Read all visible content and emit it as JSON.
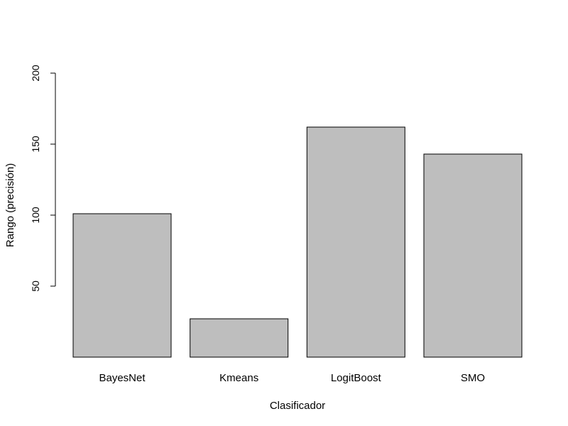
{
  "chart_data": {
    "type": "bar",
    "title": "",
    "xlabel": "Clasificador",
    "ylabel": "Rango (precisión)",
    "categories": [
      "BayesNet",
      "Kmeans",
      "LogitBoost",
      "SMO"
    ],
    "values": [
      101,
      27,
      162,
      143
    ],
    "ylim": [
      0,
      200
    ],
    "yticks": [
      50,
      100,
      150,
      200
    ],
    "ytick_labels": [
      "50",
      "100",
      "150",
      "200"
    ],
    "grid": false,
    "legend": "none",
    "bar_color": "#bebebe",
    "bar_edge_color": "#000000"
  }
}
